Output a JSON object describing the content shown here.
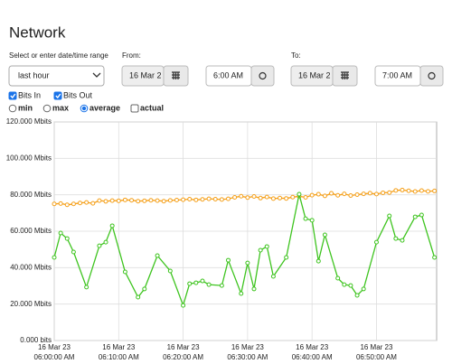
{
  "header": {
    "title": "Network"
  },
  "range": {
    "label": "Select or enter date/time range",
    "value": "last hour"
  },
  "from": {
    "label": "From:",
    "date": "16 Mar 2",
    "time": "6:00 AM"
  },
  "to": {
    "label": "To:",
    "date": "16 Mar 2",
    "time": "7:00 AM"
  },
  "modes": [
    {
      "label": "min",
      "selected": false,
      "control": "radio"
    },
    {
      "label": "max",
      "selected": false,
      "control": "radio"
    },
    {
      "label": "average",
      "selected": true,
      "control": "radio"
    },
    {
      "label": "actual",
      "selected": false,
      "control": "checkbox"
    }
  ],
  "chart_data": {
    "type": "line",
    "grid": true,
    "xlim": [
      "06:00:00",
      "06:59:20"
    ],
    "xticks": [
      {
        "value": "06:00:00",
        "label": [
          "16 Mar 23",
          "06:00:00 AM"
        ]
      },
      {
        "value": "06:10:00",
        "label": [
          "16 Mar 23",
          "06:10:00 AM"
        ]
      },
      {
        "value": "06:20:00",
        "label": [
          "16 Mar 23",
          "06:20:00 AM"
        ]
      },
      {
        "value": "06:30:00",
        "label": [
          "16 Mar 23",
          "06:30:00 AM"
        ]
      },
      {
        "value": "06:40:00",
        "label": [
          "16 Mar 23",
          "06:40:00 AM"
        ]
      },
      {
        "value": "06:50:00",
        "label": [
          "16 Mar 23",
          "06:50:00 AM"
        ]
      }
    ],
    "ylim": [
      0,
      120000
    ],
    "yticks": [
      {
        "value": 0,
        "label": "0.000 bits"
      },
      {
        "value": 20000,
        "label": "20.000 Mbits"
      },
      {
        "value": 40000,
        "label": "40.000 Mbits"
      },
      {
        "value": 60000,
        "label": "60.000 Mbits"
      },
      {
        "value": 80000,
        "label": "80.000 Mbits"
      },
      {
        "value": 100000,
        "label": "100.000 Mbits"
      },
      {
        "value": 120000,
        "label": "120.000 Mbits"
      }
    ],
    "series": [
      {
        "name": "Bits In",
        "color": "#f5a01a",
        "visible": true,
        "x": [
          "06:00:00",
          "06:01:00",
          "06:02:00",
          "06:03:00",
          "06:04:00",
          "06:05:00",
          "06:06:00",
          "06:07:00",
          "06:08:00",
          "06:09:00",
          "06:10:00",
          "06:11:00",
          "06:12:00",
          "06:13:00",
          "06:14:00",
          "06:15:00",
          "06:16:00",
          "06:17:00",
          "06:18:00",
          "06:19:00",
          "06:20:00",
          "06:21:00",
          "06:22:00",
          "06:23:00",
          "06:24:00",
          "06:25:00",
          "06:26:00",
          "06:27:00",
          "06:28:00",
          "06:29:00",
          "06:30:00",
          "06:31:00",
          "06:32:00",
          "06:33:00",
          "06:34:00",
          "06:35:00",
          "06:36:00",
          "06:37:00",
          "06:38:00",
          "06:39:00",
          "06:40:00",
          "06:41:00",
          "06:42:00",
          "06:43:00",
          "06:44:00",
          "06:45:00",
          "06:46:00",
          "06:47:00",
          "06:48:00",
          "06:49:00",
          "06:50:00",
          "06:51:00",
          "06:52:00",
          "06:53:00",
          "06:54:00",
          "06:55:00",
          "06:56:00",
          "06:57:00",
          "06:58:00",
          "06:59:00"
        ],
        "values": [
          75000,
          75200,
          74500,
          75000,
          75500,
          75800,
          75300,
          76800,
          76400,
          76800,
          76700,
          77200,
          77000,
          76500,
          76700,
          77000,
          76800,
          76500,
          76900,
          77100,
          77300,
          77600,
          77200,
          77500,
          77800,
          77600,
          77400,
          77800,
          78600,
          79200,
          78500,
          79100,
          78200,
          78800,
          77900,
          78200,
          78000,
          78700,
          79200,
          78600,
          79800,
          80300,
          79400,
          80800,
          79700,
          80500,
          79600,
          80100,
          80500,
          80900,
          80400,
          81100,
          81200,
          82400,
          82600,
          82200,
          81800,
          82300,
          81900,
          82100
        ]
      },
      {
        "name": "Bits Out",
        "color": "#3ec41f",
        "visible": true,
        "x": [
          "06:00:00",
          "06:01:00",
          "06:02:00",
          "06:03:00",
          "06:05:00",
          "06:07:00",
          "06:08:00",
          "06:09:00",
          "06:11:00",
          "06:13:00",
          "06:14:00",
          "06:16:00",
          "06:18:00",
          "06:20:00",
          "06:21:00",
          "06:22:00",
          "06:23:00",
          "06:24:00",
          "06:26:00",
          "06:27:00",
          "06:29:00",
          "06:30:00",
          "06:31:00",
          "06:32:00",
          "06:33:00",
          "06:34:00",
          "06:36:00",
          "06:38:00",
          "06:39:00",
          "06:40:00",
          "06:41:00",
          "06:42:00",
          "06:44:00",
          "06:45:00",
          "06:46:00",
          "06:47:00",
          "06:48:00",
          "06:50:00",
          "06:52:00",
          "06:53:00",
          "06:54:00",
          "06:56:00",
          "06:57:00",
          "06:59:00"
        ],
        "values": [
          45600,
          59000,
          56000,
          48600,
          29300,
          52000,
          54000,
          63000,
          37700,
          23800,
          28300,
          46600,
          38200,
          19300,
          31200,
          31700,
          32700,
          30700,
          30200,
          44100,
          25800,
          42600,
          28300,
          49600,
          51600,
          35200,
          45600,
          80300,
          66900,
          66000,
          43600,
          58000,
          34200,
          30700,
          30200,
          24800,
          28300,
          54000,
          68400,
          56000,
          55000,
          67900,
          68900,
          45600
        ]
      }
    ]
  }
}
